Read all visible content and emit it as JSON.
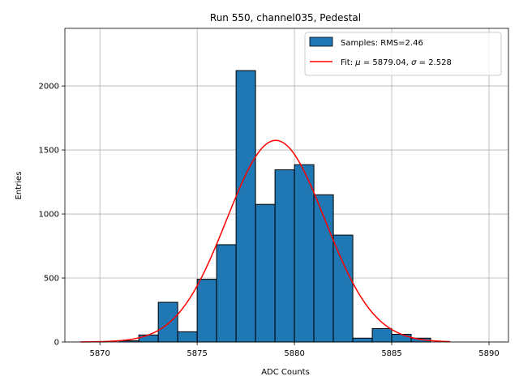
{
  "chart_data": {
    "type": "bar",
    "title": "Run 550, channel035, Pedestal",
    "xlabel": "ADC Counts",
    "ylabel": "Entries",
    "xlim": [
      5868.2,
      5891.0
    ],
    "ylim": [
      0,
      2450
    ],
    "xticks": [
      5870,
      5875,
      5880,
      5885,
      5890
    ],
    "yticks": [
      0,
      500,
      1000,
      1500,
      2000
    ],
    "grid": true,
    "legend_position": "top-right",
    "histogram": {
      "name": "Samples: RMS=2.46",
      "color": "#1f77b4",
      "edgecolor": "#000000",
      "bin_edges": [
        5871,
        5872,
        5873,
        5874,
        5875,
        5876,
        5877,
        5878,
        5879,
        5880,
        5881,
        5882,
        5883,
        5884,
        5885,
        5886,
        5887
      ],
      "counts": [
        10,
        55,
        310,
        80,
        490,
        760,
        2120,
        1075,
        1345,
        1385,
        1150,
        835,
        30,
        105,
        60,
        30
      ]
    },
    "fit": {
      "name_prefix": "Fit: ",
      "mu_symbol": "μ",
      "mu_text": " = 5879.04, ",
      "sigma_symbol": "σ",
      "sigma_text": " = 2.528",
      "color": "#ff0000",
      "mu": 5879.04,
      "sigma": 2.528,
      "amplitude": 1575,
      "x_range": [
        5869,
        5888
      ]
    }
  }
}
